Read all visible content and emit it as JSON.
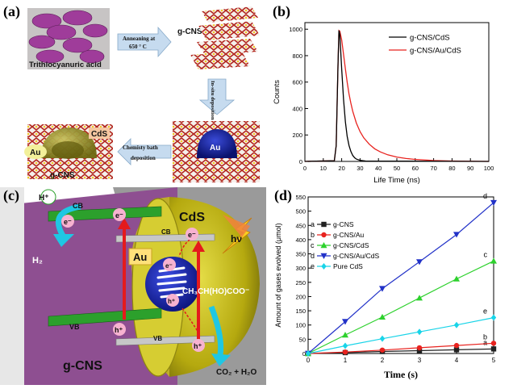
{
  "figure": {
    "panel_a": {
      "label": "(a)",
      "trithio": "Trithiocyanuric acid",
      "anneal_line1": "Anneaning at",
      "anneal_line2": "650 ° C",
      "gcns": "g-CNS",
      "insitu": "In-situ deposition",
      "au": "Au",
      "cds": "CdS",
      "au2": "Au",
      "gcns2": "g-CNS",
      "cbd_line1": "Chemisty bath",
      "cbd_line2": "deposition"
    },
    "panel_b": {
      "label": "(b)"
    },
    "panel_c": {
      "label": "(c)",
      "hplus_top": "H⁺",
      "e1": "e⁻",
      "cb_left": "CB",
      "h2": "H₂",
      "e2": "e⁻",
      "e3": "e⁻",
      "cds": "CdS",
      "cb_right": "CB",
      "hv": "hν",
      "au": "Au",
      "e4": "e⁻",
      "h1": "h⁺",
      "lactate": "CH₃CH(HO)COO⁻",
      "vb_left": "VB",
      "h2b": "h⁺",
      "vb_right": "VB",
      "h3": "h⁺",
      "gcns": "g-CNS",
      "products": "CO₂ + H₂O"
    },
    "panel_d": {
      "label": "(d)"
    }
  },
  "chart_data": [
    {
      "type": "line",
      "panel": "(b)",
      "xlabel": "Life Time (ns)",
      "ylabel": "Counts",
      "xlim": [
        0,
        100
      ],
      "ylim": [
        0,
        1050
      ],
      "xticks": [
        0,
        10,
        20,
        30,
        40,
        50,
        60,
        70,
        80,
        90,
        100
      ],
      "yticks": [
        0,
        200,
        400,
        600,
        800,
        1000
      ],
      "legend_position": "top-right",
      "series": [
        {
          "name": "g-CNS/CdS",
          "color": "#000000",
          "x": [
            0,
            16,
            17,
            18,
            18.5,
            19,
            20,
            21,
            22,
            23,
            24,
            25,
            26,
            27,
            28,
            30,
            33,
            100
          ],
          "y": [
            0,
            5,
            120,
            720,
            990,
            960,
            700,
            470,
            300,
            190,
            120,
            75,
            45,
            28,
            18,
            8,
            3,
            0
          ]
        },
        {
          "name": "g-CNS/Au/CdS",
          "color": "#e8231f",
          "x": [
            0,
            16,
            17,
            18,
            18.5,
            19,
            20,
            21,
            22,
            23,
            24,
            25,
            26,
            28,
            30,
            32,
            35,
            38,
            41,
            45,
            50,
            55,
            60,
            70,
            80,
            100
          ],
          "y": [
            0,
            5,
            120,
            720,
            990,
            985,
            920,
            810,
            700,
            600,
            510,
            440,
            380,
            290,
            225,
            178,
            130,
            95,
            72,
            50,
            33,
            22,
            15,
            7,
            3,
            0
          ]
        }
      ]
    },
    {
      "type": "line",
      "panel": "(d)",
      "xlabel": "Time (s)",
      "ylabel": "Amount of gases evolved (μmol)",
      "xlim": [
        0,
        5
      ],
      "ylim": [
        0,
        550
      ],
      "xticks": [
        0,
        1,
        2,
        3,
        4,
        5
      ],
      "yticks": [
        0,
        50,
        100,
        150,
        200,
        250,
        300,
        350,
        400,
        450,
        500,
        550
      ],
      "legend_position": "left",
      "series": [
        {
          "name": "g-CNS",
          "letter": "a",
          "color": "#222222",
          "marker": "square",
          "x": [
            0,
            1,
            2,
            3,
            4,
            5
          ],
          "y": [
            0,
            3,
            7,
            10,
            13,
            16
          ]
        },
        {
          "name": "g-CNS/Au",
          "letter": "b",
          "color": "#e8231f",
          "marker": "circle",
          "x": [
            0,
            1,
            2,
            3,
            4,
            5
          ],
          "y": [
            0,
            5,
            12,
            20,
            28,
            36
          ]
        },
        {
          "name": "g-CNS/CdS",
          "letter": "c",
          "color": "#2dd12d",
          "marker": "triangle-up",
          "x": [
            0,
            1,
            2,
            3,
            4,
            5
          ],
          "y": [
            0,
            65,
            128,
            195,
            262,
            325
          ]
        },
        {
          "name": "g-CNS/Au/CdS",
          "letter": "d",
          "color": "#2232c8",
          "marker": "triangle-down",
          "x": [
            0,
            1,
            2,
            3,
            4,
            5
          ],
          "y": [
            0,
            112,
            228,
            322,
            418,
            530
          ]
        },
        {
          "name": "Pure CdS",
          "letter": "e",
          "color": "#19d4e8",
          "marker": "diamond",
          "x": [
            0,
            1,
            2,
            3,
            4,
            5
          ],
          "y": [
            0,
            27,
            52,
            76,
            100,
            126
          ]
        }
      ]
    }
  ]
}
